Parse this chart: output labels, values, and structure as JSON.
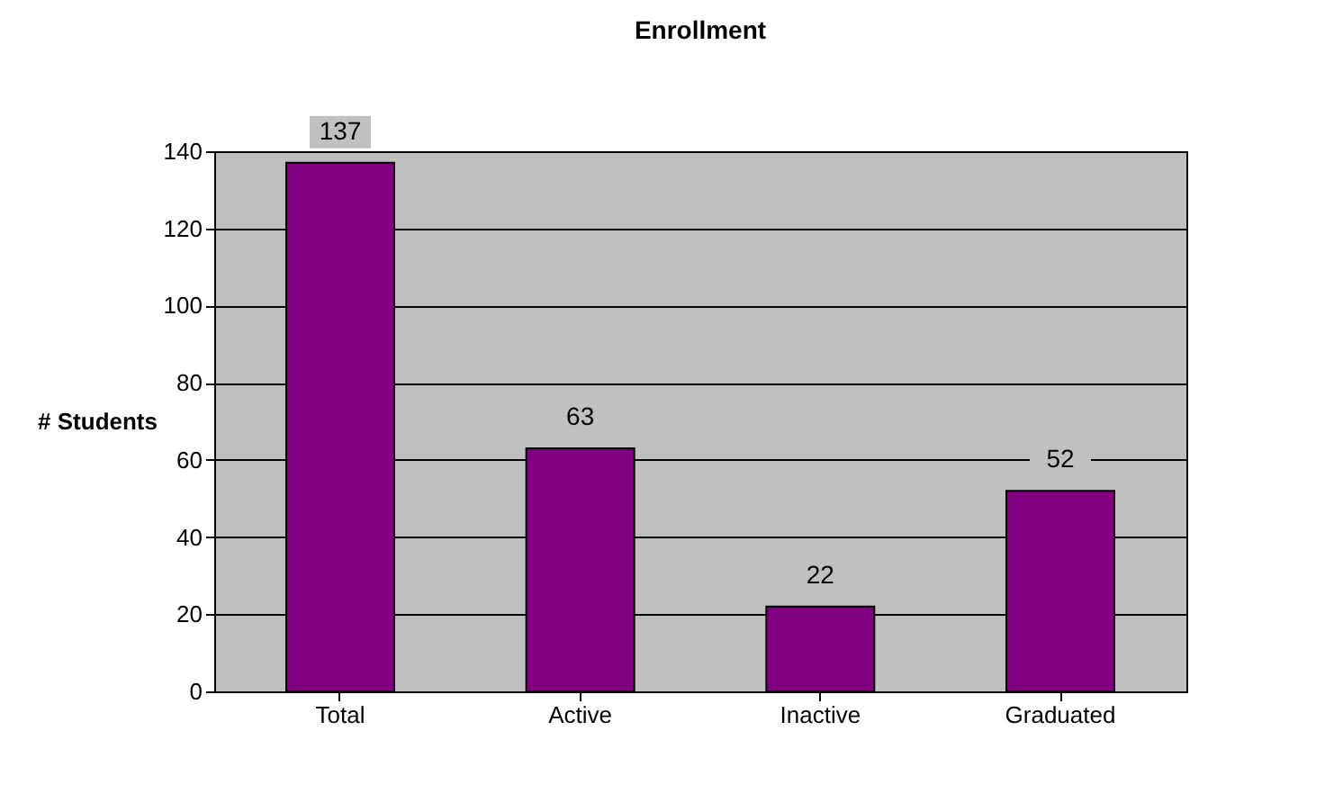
{
  "chart_data": {
    "type": "bar",
    "title": "Enrollment",
    "ylabel": "# Students",
    "categories": [
      "Total",
      "Active",
      "Inactive",
      "Graduated"
    ],
    "values": [
      137,
      63,
      22,
      52
    ],
    "color": "#800080",
    "ylim": [
      0,
      140
    ],
    "yticks": [
      0,
      20,
      40,
      60,
      80,
      100,
      120,
      140
    ],
    "grid": "y",
    "data_labels": true
  }
}
